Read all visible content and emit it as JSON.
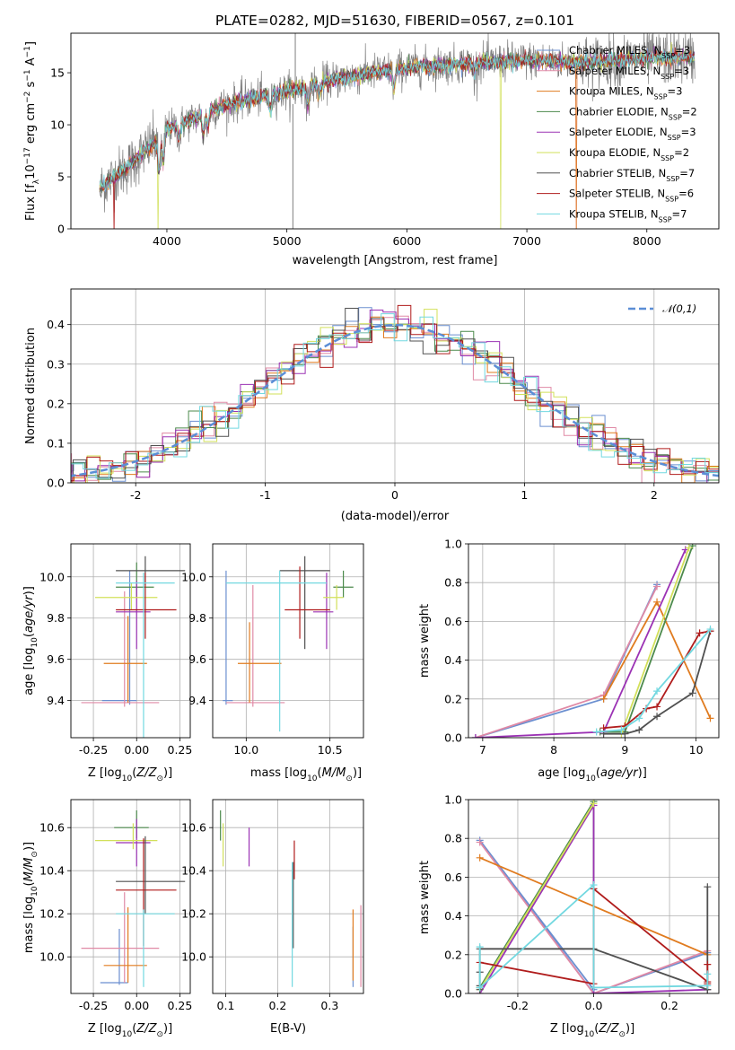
{
  "title": "PLATE=0282, MJD=51630, FIBERID=0567, z=0.101",
  "colors": {
    "Chabrier MILES": "#6b8fd0",
    "Salpeter MILES": "#e08aa6",
    "Kroupa MILES": "#e07b1f",
    "Chabrier ELODIE": "#4c8a4c",
    "Salpeter ELODIE": "#9b32b4",
    "Kroupa ELODIE": "#d2e05a",
    "Chabrier STELIB": "#505050",
    "Salpeter STELIB": "#b01c1c",
    "Kroupa STELIB": "#72d8e0",
    "gaussian": "#5b8ed6",
    "data": "#7f7f7f"
  },
  "chart_data": [
    {
      "id": "spectrum",
      "type": "line",
      "xlabel": "wavelength [Angstrom, rest frame]",
      "ylabel": "Flux [f_λ 10^-17 erg cm^-2 s^-1 A^-1]",
      "xlim": [
        3200,
        8600
      ],
      "ylim": [
        0,
        18.8
      ],
      "xticks": [
        4000,
        5000,
        6000,
        7000,
        8000
      ],
      "yticks": [
        0,
        5,
        10,
        15
      ],
      "legend_position": "top-right",
      "grid": false,
      "legend": [
        {
          "label": "Chabrier MILES, N",
          "sub": "SSP",
          "tail": "=3",
          "color": "Chabrier MILES"
        },
        {
          "label": "Salpeter MILES, N",
          "sub": "SSP",
          "tail": "=3",
          "color": "Salpeter MILES"
        },
        {
          "label": "Kroupa MILES, N",
          "sub": "SSP",
          "tail": "=3",
          "color": "Kroupa MILES"
        },
        {
          "label": "Chabrier ELODIE, N",
          "sub": "SSP",
          "tail": "=2",
          "color": "Chabrier ELODIE"
        },
        {
          "label": "Salpeter ELODIE, N",
          "sub": "SSP",
          "tail": "=3",
          "color": "Salpeter ELODIE"
        },
        {
          "label": "Kroupa ELODIE, N",
          "sub": "SSP",
          "tail": "=2",
          "color": "Kroupa ELODIE"
        },
        {
          "label": "Chabrier STELIB, N",
          "sub": "SSP",
          "tail": "=7",
          "color": "Chabrier STELIB"
        },
        {
          "label": "Salpeter STELIB, N",
          "sub": "SSP",
          "tail": "=6",
          "color": "Salpeter STELIB"
        },
        {
          "label": "Kroupa STELIB, N",
          "sub": "SSP",
          "tail": "=7",
          "color": "Kroupa STELIB"
        }
      ],
      "continuum": {
        "x": [
          3450,
          3700,
          4000,
          4500,
          5000,
          5500,
          6000,
          6500,
          7000,
          7500,
          8000,
          8400
        ],
        "y": [
          4.0,
          6.2,
          9.5,
          12.0,
          13.2,
          14.6,
          15.5,
          15.9,
          16.2,
          16.0,
          16.4,
          16.5
        ]
      },
      "absorption_features": [
        {
          "x": 3934,
          "depth": 3.5
        },
        {
          "x": 3969,
          "depth": 3.0
        },
        {
          "x": 4102,
          "depth": 1.5
        },
        {
          "x": 4304,
          "depth": 2.0
        },
        {
          "x": 4341,
          "depth": 1.5
        },
        {
          "x": 4861,
          "depth": 1.5
        },
        {
          "x": 5175,
          "depth": 2.0
        },
        {
          "x": 5270,
          "depth": 1.2
        },
        {
          "x": 5893,
          "depth": 2.0
        },
        {
          "x": 6563,
          "depth": 1.0
        }
      ],
      "data_spikes": [
        {
          "x": 5070,
          "ytop": 18.8
        },
        {
          "x": 5050,
          "ytop": 0
        }
      ],
      "model_drops": [
        {
          "series": "Kroupa ELODIE",
          "x": 3925
        },
        {
          "series": "Kroupa ELODIE",
          "x": 6780
        },
        {
          "series": "Kroupa MILES",
          "x": 7410
        },
        {
          "series": "Salpeter MILES",
          "x": 7410
        },
        {
          "series": "Salpeter STELIB",
          "x": 3560
        }
      ]
    },
    {
      "id": "residual-histogram",
      "type": "bar",
      "xlabel": "(data-model)/error",
      "ylabel": "Normed distribution",
      "xlim": [
        -2.5,
        2.5
      ],
      "ylim": [
        0,
        0.49
      ],
      "xticks": [
        -2,
        -1,
        0,
        1,
        2
      ],
      "yticks": [
        0.0,
        0.1,
        0.2,
        0.3,
        0.4
      ],
      "grid": true,
      "legend_position": "top-right",
      "legend": [
        {
          "label": "𝒩(0,1)",
          "color": "gaussian",
          "style": "dashed"
        }
      ],
      "bin_width": 0.1,
      "gaussian": {
        "mean": 0,
        "sigma": 1
      }
    },
    {
      "id": "age-vs-Z",
      "type": "scatter",
      "xlabel": "Z [log10(Z/Z⊙)]",
      "ylabel": "age [log10(age/yr)]",
      "xlim": [
        -0.38,
        0.31
      ],
      "ylim": [
        9.22,
        10.16
      ],
      "xticks": [
        -0.25,
        0.0,
        0.25
      ],
      "yticks": [
        9.4,
        9.6,
        9.8,
        10.0
      ],
      "grid": true,
      "points": [
        {
          "s": "Chabrier MILES",
          "x": -0.04,
          "y": 9.4,
          "ex": [
            -0.2,
            0.0
          ],
          "ey": [
            9.38,
            10.03
          ]
        },
        {
          "s": "Salpeter MILES",
          "x": -0.07,
          "y": 9.39,
          "ex": [
            -0.32,
            0.13
          ],
          "ey": [
            9.37,
            9.93
          ]
        },
        {
          "s": "Kroupa MILES",
          "x": -0.05,
          "y": 9.58,
          "ex": [
            -0.19,
            0.06
          ],
          "ey": [
            9.39,
            9.81
          ]
        },
        {
          "s": "Chabrier ELODIE",
          "x": 0.0,
          "y": 9.95,
          "ex": [
            -0.12,
            0.1
          ],
          "ey": [
            9.9,
            10.07
          ]
        },
        {
          "s": "Salpeter ELODIE",
          "x": 0.0,
          "y": 9.83,
          "ex": [
            -0.12,
            0.08
          ],
          "ey": [
            9.65,
            9.98
          ]
        },
        {
          "s": "Kroupa ELODIE",
          "x": -0.03,
          "y": 9.9,
          "ex": [
            -0.24,
            0.12
          ],
          "ey": [
            9.84,
            9.97
          ]
        },
        {
          "s": "Chabrier STELIB",
          "x": 0.05,
          "y": 10.03,
          "ex": [
            -0.12,
            0.28
          ],
          "ey": [
            9.96,
            10.1
          ]
        },
        {
          "s": "Salpeter STELIB",
          "x": 0.05,
          "y": 9.84,
          "ex": [
            -0.12,
            0.23
          ],
          "ey": [
            9.7,
            10.02
          ]
        },
        {
          "s": "Kroupa STELIB",
          "x": 0.04,
          "y": 9.97,
          "ex": [
            -0.12,
            0.22
          ],
          "ey": [
            9.22,
            10.02
          ]
        }
      ]
    },
    {
      "id": "age-vs-mass",
      "type": "scatter",
      "xlabel": "mass [log10(M/M⊙)]",
      "ylabel": "",
      "xlim": [
        9.8,
        10.7
      ],
      "ylim": [
        9.22,
        10.16
      ],
      "xticks": [
        10.0,
        10.5
      ],
      "yticks": [
        9.4,
        9.6,
        9.8,
        10.0
      ],
      "grid": true,
      "points": [
        {
          "s": "Chabrier MILES",
          "x": 9.88,
          "y": 9.4,
          "ex": [
            9.86,
            9.92
          ],
          "ey": [
            9.38,
            10.03
          ]
        },
        {
          "s": "Salpeter MILES",
          "x": 10.04,
          "y": 9.39,
          "ex": [
            9.88,
            10.23
          ],
          "ey": [
            9.37,
            9.96
          ]
        },
        {
          "s": "Kroupa MILES",
          "x": 10.02,
          "y": 9.58,
          "ex": [
            9.95,
            10.21
          ],
          "ey": [
            9.39,
            9.78
          ]
        },
        {
          "s": "Chabrier ELODIE",
          "x": 10.58,
          "y": 9.95,
          "ex": [
            10.52,
            10.64
          ],
          "ey": [
            9.9,
            10.03
          ]
        },
        {
          "s": "Salpeter ELODIE",
          "x": 10.48,
          "y": 9.83,
          "ex": [
            10.4,
            10.52
          ],
          "ey": [
            9.65,
            10.02
          ]
        },
        {
          "s": "Kroupa ELODIE",
          "x": 10.54,
          "y": 9.9,
          "ex": [
            10.46,
            10.58
          ],
          "ey": [
            9.84,
            9.96
          ]
        },
        {
          "s": "Chabrier STELIB",
          "x": 10.35,
          "y": 10.03,
          "ex": [
            10.2,
            10.5
          ],
          "ey": [
            9.65,
            10.1
          ]
        },
        {
          "s": "Salpeter STELIB",
          "x": 10.32,
          "y": 9.84,
          "ex": [
            10.23,
            10.5
          ],
          "ey": [
            9.7,
            10.05
          ]
        },
        {
          "s": "Kroupa STELIB",
          "x": 10.2,
          "y": 9.97,
          "ex": [
            9.88,
            10.48
          ],
          "ey": [
            9.25,
            10.03
          ]
        }
      ]
    },
    {
      "id": "mass-weight-vs-age",
      "type": "line",
      "xlabel": "age [log10(age/yr)]",
      "ylabel": "mass weight",
      "xlim": [
        6.8,
        10.32
      ],
      "ylim": [
        0,
        1.0
      ],
      "xticks": [
        7,
        8,
        9,
        10
      ],
      "yticks": [
        0.0,
        0.2,
        0.4,
        0.6,
        0.8,
        1.0
      ],
      "grid": true,
      "series": [
        {
          "s": "Chabrier MILES",
          "x": [
            6.9,
            8.7,
            9.45
          ],
          "y": [
            0.0,
            0.2,
            0.79
          ]
        },
        {
          "s": "Salpeter MILES",
          "x": [
            6.9,
            8.7,
            9.45
          ],
          "y": [
            0.0,
            0.22,
            0.78
          ]
        },
        {
          "s": "Kroupa MILES",
          "x": [
            8.7,
            9.45,
            10.2
          ],
          "y": [
            0.2,
            0.7,
            0.1
          ]
        },
        {
          "s": "Chabrier ELODIE",
          "x": [
            8.65,
            9.0,
            9.95
          ],
          "y": [
            0.03,
            0.03,
            0.99
          ]
        },
        {
          "s": "Salpeter ELODIE",
          "x": [
            6.9,
            8.7,
            9.85
          ],
          "y": [
            0.0,
            0.03,
            0.97
          ]
        },
        {
          "s": "Kroupa ELODIE",
          "x": [
            8.95,
            9.9
          ],
          "y": [
            0.02,
            0.98
          ]
        },
        {
          "s": "Chabrier STELIB",
          "x": [
            8.7,
            9.0,
            9.2,
            9.45,
            9.95,
            10.2
          ],
          "y": [
            0.02,
            0.02,
            0.04,
            0.11,
            0.23,
            0.55
          ]
        },
        {
          "s": "Salpeter STELIB",
          "x": [
            8.7,
            9.0,
            9.3,
            9.45,
            10.05,
            10.2
          ],
          "y": [
            0.05,
            0.06,
            0.15,
            0.16,
            0.54,
            0.55
          ]
        },
        {
          "s": "Kroupa STELIB",
          "x": [
            8.6,
            8.95,
            9.2,
            9.45,
            10.2
          ],
          "y": [
            0.03,
            0.04,
            0.1,
            0.24,
            0.56
          ]
        }
      ]
    },
    {
      "id": "mass-vs-Z",
      "type": "scatter",
      "xlabel": "Z [log10(Z/Z⊙)]",
      "ylabel": "mass [log10(M/M⊙)]",
      "xlim": [
        -0.38,
        0.31
      ],
      "ylim": [
        9.83,
        10.73
      ],
      "xticks": [
        -0.25,
        0.0,
        0.25
      ],
      "yticks": [
        10.0,
        10.2,
        10.4,
        10.6
      ],
      "grid": true,
      "points": [
        {
          "s": "Chabrier MILES",
          "x": -0.1,
          "y": 9.88,
          "ex": [
            -0.21,
            -0.05
          ],
          "ey": [
            9.87,
            10.13
          ]
        },
        {
          "s": "Salpeter MILES",
          "x": -0.07,
          "y": 10.04,
          "ex": [
            -0.32,
            0.13
          ],
          "ey": [
            9.88,
            10.3
          ]
        },
        {
          "s": "Kroupa MILES",
          "x": -0.05,
          "y": 9.96,
          "ex": [
            -0.19,
            0.06
          ],
          "ey": [
            9.88,
            10.23
          ]
        },
        {
          "s": "Chabrier ELODIE",
          "x": 0.0,
          "y": 10.6,
          "ex": [
            -0.13,
            0.07
          ],
          "ey": [
            10.55,
            10.68
          ]
        },
        {
          "s": "Salpeter ELODIE",
          "x": 0.0,
          "y": 10.53,
          "ex": [
            -0.12,
            0.08
          ],
          "ey": [
            10.42,
            10.64
          ]
        },
        {
          "s": "Kroupa ELODIE",
          "x": -0.02,
          "y": 10.54,
          "ex": [
            -0.24,
            0.12
          ],
          "ey": [
            10.5,
            10.62
          ]
        },
        {
          "s": "Chabrier STELIB",
          "x": 0.05,
          "y": 10.35,
          "ex": [
            -0.12,
            0.28
          ],
          "ey": [
            10.2,
            10.56
          ]
        },
        {
          "s": "Salpeter STELIB",
          "x": 0.04,
          "y": 10.31,
          "ex": [
            -0.12,
            0.23
          ],
          "ey": [
            10.05,
            10.55
          ]
        },
        {
          "s": "Kroupa STELIB",
          "x": 0.04,
          "y": 10.2,
          "ex": [
            -0.12,
            0.22
          ],
          "ey": [
            9.86,
            10.22
          ]
        }
      ]
    },
    {
      "id": "mass-vs-ebv",
      "type": "scatter",
      "xlabel": "E(B-V)",
      "ylabel": "",
      "xlim": [
        0.075,
        0.365
      ],
      "ylim": [
        9.83,
        10.73
      ],
      "xticks": [
        0.1,
        0.2,
        0.3
      ],
      "yticks": [
        10.0,
        10.2,
        10.4,
        10.6
      ],
      "grid": true,
      "points": [
        {
          "s": "Chabrier MILES",
          "x": 0.345,
          "ey": [
            9.86,
            10.14
          ]
        },
        {
          "s": "Salpeter MILES",
          "x": 0.36,
          "ey": [
            9.86,
            10.24
          ]
        },
        {
          "s": "Kroupa MILES",
          "x": 0.345,
          "ey": [
            9.89,
            10.22
          ]
        },
        {
          "s": "Chabrier ELODIE",
          "x": 0.09,
          "ey": [
            10.54,
            10.68
          ]
        },
        {
          "s": "Salpeter ELODIE",
          "x": 0.145,
          "ey": [
            10.42,
            10.6
          ]
        },
        {
          "s": "Kroupa ELODIE",
          "x": 0.095,
          "ey": [
            10.42,
            10.62
          ]
        },
        {
          "s": "Chabrier STELIB",
          "x": 0.23,
          "ey": [
            10.04,
            10.44
          ]
        },
        {
          "s": "Salpeter STELIB",
          "x": 0.232,
          "ey": [
            10.36,
            10.54
          ]
        },
        {
          "s": "Kroupa STELIB",
          "x": 0.228,
          "ey": [
            9.86,
            10.44
          ]
        }
      ]
    },
    {
      "id": "mass-weight-vs-Z",
      "type": "line",
      "xlabel": "Z [log10(Z/Z⊙)]",
      "ylabel": "mass weight",
      "xlim": [
        -0.33,
        0.33
      ],
      "ylim": [
        0,
        1.0
      ],
      "xticks": [
        -0.2,
        0.0,
        0.2
      ],
      "yticks": [
        0.0,
        0.2,
        0.4,
        0.6,
        0.8,
        1.0
      ],
      "grid": true,
      "series": [
        {
          "s": "Chabrier MILES",
          "x": [
            0.0,
            -0.3,
            0.0,
            0.3
          ],
          "y": [
            0.02,
            0.79,
            0.0,
            0.21
          ]
        },
        {
          "s": "Salpeter MILES",
          "x": [
            0.0,
            -0.3,
            0.0,
            0.3
          ],
          "y": [
            0.0,
            0.78,
            0.0,
            0.22
          ]
        },
        {
          "s": "Kroupa MILES",
          "x": [
            -0.3,
            0.3
          ],
          "y": [
            0.7,
            0.2
          ]
        },
        {
          "s": "Chabrier ELODIE",
          "x": [
            -0.3,
            0.0,
            0.0
          ],
          "y": [
            0.03,
            0.99,
            0.03
          ]
        },
        {
          "s": "Salpeter ELODIE",
          "x": [
            -0.3,
            0.0,
            0.0,
            0.3
          ],
          "y": [
            0.0,
            0.97,
            0.0,
            0.02
          ]
        },
        {
          "s": "Kroupa ELODIE",
          "x": [
            -0.3,
            0.0
          ],
          "y": [
            0.02,
            0.98
          ]
        },
        {
          "s": "Chabrier STELIB",
          "x": [
            -0.3,
            -0.3,
            -0.3,
            -0.3,
            0.0,
            0.3,
            0.3,
            0.3
          ],
          "y": [
            0.02,
            0.04,
            0.11,
            0.23,
            0.23,
            0.02,
            0.55,
            0.02
          ]
        },
        {
          "s": "Salpeter STELIB",
          "x": [
            -0.3,
            0.0,
            0.0,
            0.3,
            0.3,
            0.3
          ],
          "y": [
            0.16,
            0.05,
            0.54,
            0.06,
            0.15,
            0.05
          ]
        },
        {
          "s": "Kroupa STELIB",
          "x": [
            -0.3,
            -0.3,
            0.0,
            0.0,
            0.3,
            0.3
          ],
          "y": [
            0.24,
            0.03,
            0.56,
            0.03,
            0.04,
            0.1
          ]
        }
      ]
    }
  ]
}
